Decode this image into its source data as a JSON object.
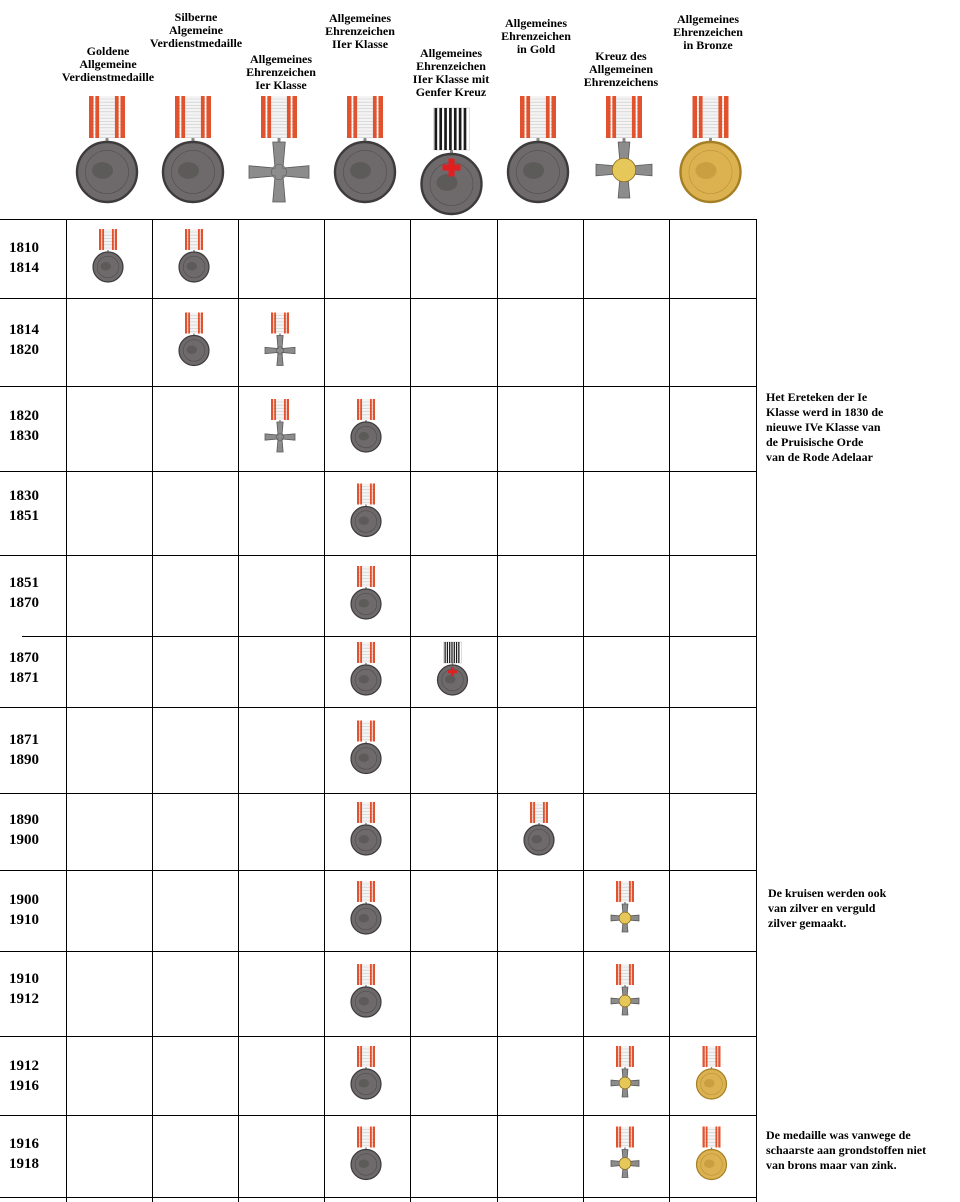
{
  "columns": [
    {
      "label": "Goldene\nAllgemeine\nVerdienstmedaille",
      "type": "medal",
      "metal": "gold"
    },
    {
      "label": "Silberne\nAlgemeine\nVerdienstmedaille",
      "type": "medal",
      "metal": "silver"
    },
    {
      "label": "Allgemeines\nEhrenzeichen\nIer Klasse",
      "type": "cross",
      "metal": "silver"
    },
    {
      "label": "Allgemeines\nEhrenzeichen\nIIer Klasse",
      "type": "medal",
      "metal": "silver"
    },
    {
      "label": "Allgemeines\nEhrenzeichen\nIIer Klasse mit\nGenfer Kreuz",
      "type": "medal-redcross",
      "metal": "silver"
    },
    {
      "label": "Allgemeines\nEhrenzeichen\nin Gold",
      "type": "medal",
      "metal": "gold"
    },
    {
      "label": "Kreuz des\nAllgemeinen\nEhrenzeichens",
      "type": "cross-gold",
      "metal": "gold"
    },
    {
      "label": "Allgemeines\nEhrenzeichen\nin Bronze",
      "type": "medal-bronze",
      "metal": "bronze"
    }
  ],
  "rows": [
    {
      "years": "1810\n1814",
      "medals": [
        0,
        1
      ]
    },
    {
      "years": "1814\n1820",
      "medals": [
        1,
        2
      ]
    },
    {
      "years": "1820\n1830",
      "medals": [
        2,
        3
      ]
    },
    {
      "years": "1830\n1851",
      "medals": [
        3
      ]
    },
    {
      "years": "1851\n1870",
      "medals": [
        3
      ]
    },
    {
      "years": "1870\n1871",
      "medals": [
        3,
        4
      ]
    },
    {
      "years": "1871\n1890",
      "medals": [
        3
      ]
    },
    {
      "years": "1890\n1900",
      "medals": [
        3,
        5
      ]
    },
    {
      "years": "1900\n1910",
      "medals": [
        3,
        6
      ]
    },
    {
      "years": "1910\n1912",
      "medals": [
        3,
        6
      ]
    },
    {
      "years": "1912\n1916",
      "medals": [
        3,
        6,
        7
      ]
    },
    {
      "years": "1916\n1918",
      "medals": [
        3,
        6,
        7
      ]
    }
  ],
  "notes": [
    {
      "row": 2,
      "text": "Het Ereteken der Ie\nKlasse werd in 1830 de\nnieuwe IVe Klasse van\nde  Pruisische Orde\nvan de Rode Adelaar"
    },
    {
      "row": 8,
      "text": "De kruisen werden ook\nvan zilver en verguld\nzilver gemaakt."
    },
    {
      "row": 11,
      "text": "De medaille was vanwege de\nschaarste aan grondstoffen niet\nvan brons maar van zink."
    }
  ],
  "colors": {
    "ribbon_red": "#e8502a",
    "ribbon_white": "#f4f4f4",
    "gold": "#e6c75a",
    "gold_dark": "#b8962e",
    "silver": "#6e6a6b",
    "silver_dark": "#3e3b3c",
    "bronze": "#dcb250",
    "grid_line": "#000000",
    "red_cross": "#e02020"
  }
}
